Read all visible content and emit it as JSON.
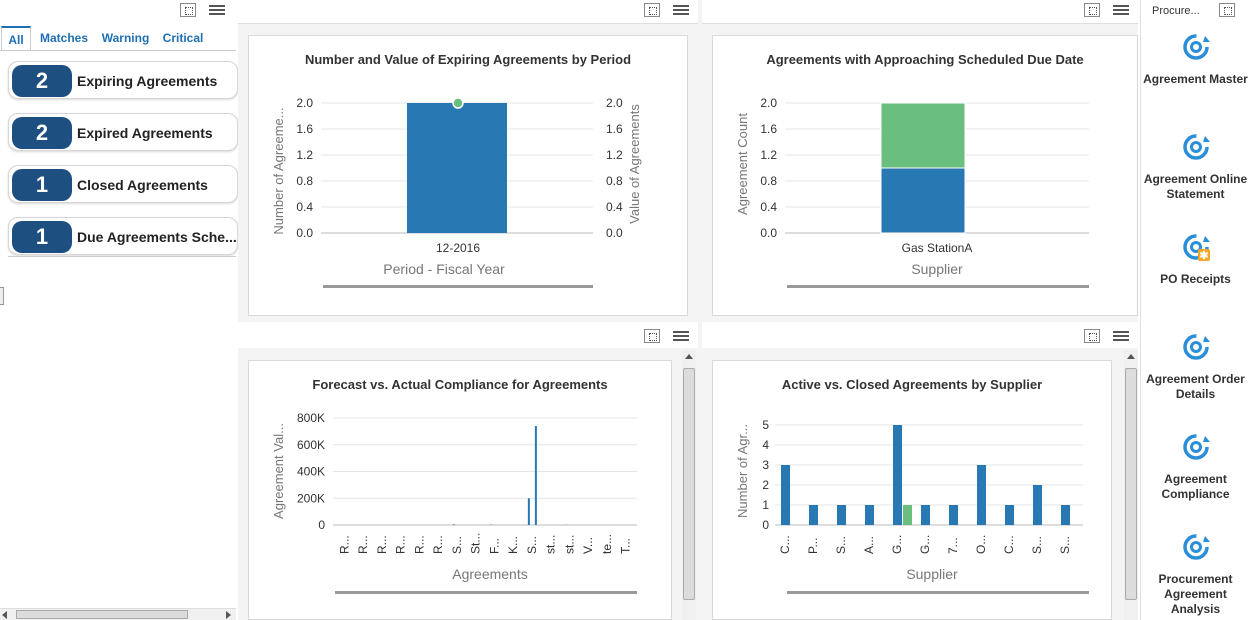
{
  "tabs": [
    "All",
    "Matches",
    "Warning",
    "Critical"
  ],
  "kpis": [
    {
      "count": "2",
      "label": "Expiring Agreements"
    },
    {
      "count": "2",
      "label": "Expired Agreements"
    },
    {
      "count": "1",
      "label": "Closed Agreements"
    },
    {
      "count": "1",
      "label": "Due Agreements Sche..."
    }
  ],
  "right_header": "Procure...",
  "launchers": [
    {
      "label": "Agreement Master",
      "icon": "refresh-gear-icon"
    },
    {
      "label": "Agreement Online Statement",
      "icon": "refresh-gear-icon"
    },
    {
      "label": "PO Receipts",
      "icon": "refresh-gear-badge-icon"
    },
    {
      "label": "Agreement Order Details",
      "icon": "refresh-gear-icon"
    },
    {
      "label": "Agreement Compliance",
      "icon": "refresh-gear-icon"
    },
    {
      "label": "Procurement Agreement Analysis",
      "icon": "refresh-gear-icon"
    }
  ],
  "colors": {
    "blue": "#2878b4",
    "green": "#6abf7e",
    "badge": "#1d4f80",
    "accent": "#1f6fb4"
  },
  "chart_data": [
    {
      "type": "bar",
      "title": "Number and Value of Expiring Agreements by Period",
      "xlabel": "Period - Fiscal Year",
      "ylabel": "Number of Agreeme...",
      "y2label": "Value of Agreements",
      "categories": [
        "12-2016"
      ],
      "values": [
        2
      ],
      "line_values": [
        2
      ],
      "yticks": [
        "2.0",
        "1.6",
        "1.2",
        "0.8",
        "0.4",
        "0.0"
      ],
      "ylim": [
        0,
        2
      ]
    },
    {
      "type": "bar",
      "title": "Agreements with Approaching Scheduled Due Date",
      "xlabel": "Supplier",
      "ylabel": "Agreement Count",
      "categories": [
        "Gas StationA"
      ],
      "series": [
        {
          "values": [
            1
          ]
        },
        {
          "values": [
            1
          ]
        }
      ],
      "yticks": [
        "2.0",
        "1.6",
        "1.2",
        "0.8",
        "0.4",
        "0.0"
      ],
      "ylim": [
        0,
        2
      ]
    },
    {
      "type": "bar",
      "title": "Forecast vs. Actual Compliance for Agreements",
      "xlabel": "Agreements",
      "ylabel": "Agreement Val...",
      "categories": [
        "R...",
        "R...",
        "R...",
        "R...",
        "R...",
        "R...",
        "S...",
        "St...",
        "F...",
        "K...",
        "S...",
        "st...",
        "st...",
        "V...",
        "te...",
        "T..."
      ],
      "series": [
        {
          "values": [
            0,
            0,
            0,
            0,
            0,
            0,
            5000,
            0,
            3000,
            0,
            200000,
            0,
            2000,
            0,
            0,
            0
          ]
        },
        {
          "values": [
            0,
            0,
            0,
            0,
            0,
            0,
            0,
            0,
            0,
            0,
            740000,
            0,
            0,
            0,
            0,
            0
          ]
        }
      ],
      "yticks": [
        "800K",
        "600K",
        "400K",
        "200K",
        "0"
      ],
      "ylim": [
        0,
        800000
      ]
    },
    {
      "type": "bar",
      "title": "Active vs. Closed Agreements by Supplier",
      "xlabel": "Supplier",
      "ylabel": "Number of Agr...",
      "categories": [
        "C...",
        "P...",
        "S...",
        "A...",
        "G...",
        "G...",
        "7...",
        "O...",
        "C...",
        "S...",
        "S..."
      ],
      "series": [
        {
          "values": [
            3,
            1,
            1,
            1,
            5,
            1,
            1,
            3,
            1,
            2,
            1
          ]
        },
        {
          "values": [
            0,
            0,
            0,
            0,
            1,
            0,
            0,
            0,
            0,
            0,
            0
          ]
        }
      ],
      "yticks": [
        "5",
        "4",
        "3",
        "2",
        "1",
        "0"
      ],
      "ylim": [
        0,
        5
      ]
    }
  ]
}
